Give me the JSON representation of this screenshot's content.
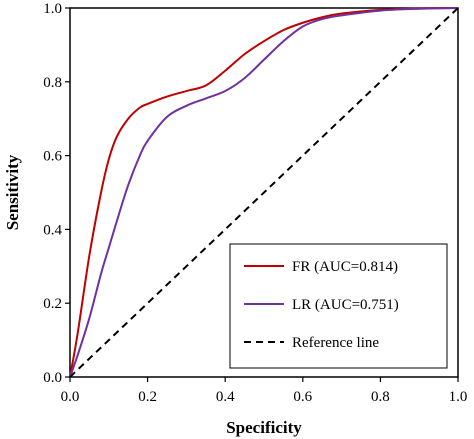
{
  "chart_data": {
    "type": "line",
    "xlabel": "Specificity",
    "ylabel": "Sensitivity",
    "xlim": [
      0,
      1
    ],
    "ylim": [
      0,
      1
    ],
    "xticks": [
      "0.0",
      "0.2",
      "0.4",
      "0.6",
      "0.8",
      "1.0"
    ],
    "yticks": [
      "0.0",
      "0.2",
      "0.4",
      "0.6",
      "0.8",
      "1.0"
    ],
    "grid": false,
    "legend_position": "bottom-right",
    "series": [
      {
        "name": "FR (AUC=0.814)",
        "color": "#c00000",
        "style": "solid",
        "x": [
          0,
          0.02,
          0.05,
          0.08,
          0.1,
          0.12,
          0.15,
          0.18,
          0.2,
          0.25,
          0.3,
          0.35,
          0.4,
          0.45,
          0.5,
          0.55,
          0.6,
          0.65,
          0.7,
          0.8,
          0.9,
          1.0
        ],
        "y": [
          0,
          0.12,
          0.33,
          0.5,
          0.59,
          0.65,
          0.7,
          0.73,
          0.74,
          0.76,
          0.775,
          0.79,
          0.83,
          0.875,
          0.91,
          0.94,
          0.96,
          0.975,
          0.985,
          0.995,
          0.999,
          1.0
        ]
      },
      {
        "name": "LR (AUC=0.751)",
        "color": "#7030a0",
        "style": "solid",
        "x": [
          0,
          0.02,
          0.05,
          0.08,
          0.1,
          0.12,
          0.15,
          0.18,
          0.2,
          0.25,
          0.3,
          0.35,
          0.4,
          0.45,
          0.5,
          0.55,
          0.6,
          0.65,
          0.7,
          0.8,
          0.9,
          1.0
        ],
        "y": [
          0,
          0.06,
          0.16,
          0.28,
          0.35,
          0.42,
          0.52,
          0.6,
          0.64,
          0.705,
          0.735,
          0.755,
          0.775,
          0.81,
          0.86,
          0.91,
          0.95,
          0.97,
          0.98,
          0.993,
          0.998,
          1.0
        ]
      },
      {
        "name": "Reference line",
        "color": "#000000",
        "style": "dashed",
        "x": [
          0,
          1
        ],
        "y": [
          0,
          1
        ]
      }
    ]
  }
}
